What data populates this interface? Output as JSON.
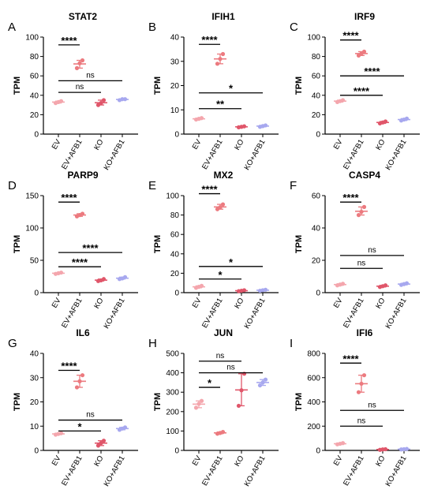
{
  "colors": {
    "EV": "#f4a6ad",
    "EV+AFB1": "#ec7a7f",
    "KO": "#e0566a",
    "KO+AFB1": "#a7a8ef"
  },
  "chart_data": [
    {
      "type": "scatter",
      "letter": "A",
      "title": "STAT2",
      "ylabel": "TPM",
      "categories": [
        "EV",
        "EV+AFB1",
        "KO",
        "KO+AFB1"
      ],
      "ylim": [
        0,
        100
      ],
      "yticks": [
        0,
        20,
        40,
        60,
        80,
        100
      ],
      "series": [
        {
          "category": "EV",
          "values": [
            32,
            33,
            34
          ]
        },
        {
          "category": "EV+AFB1",
          "values": [
            68,
            73,
            76
          ]
        },
        {
          "category": "KO",
          "values": [
            30,
            32,
            35
          ]
        },
        {
          "category": "KO+AFB1",
          "values": [
            35,
            36,
            36
          ]
        }
      ],
      "comparisons": [
        {
          "from": "EV",
          "to": "EV+AFB1",
          "label": "****",
          "y": 92
        },
        {
          "from": "EV",
          "to": "KO+AFB1",
          "label": "ns",
          "y": 55
        },
        {
          "from": "EV",
          "to": "KO",
          "label": "ns",
          "y": 43
        }
      ]
    },
    {
      "type": "scatter",
      "letter": "B",
      "title": "IFIH1",
      "ylabel": "TPM",
      "categories": [
        "EV",
        "EV+AFB1",
        "KO",
        "KO+AFB1"
      ],
      "ylim": [
        0,
        40
      ],
      "yticks": [
        0,
        10,
        20,
        30,
        40
      ],
      "series": [
        {
          "category": "EV",
          "values": [
            6,
            6.3,
            6.6
          ]
        },
        {
          "category": "EV+AFB1",
          "values": [
            29,
            31,
            33
          ]
        },
        {
          "category": "KO",
          "values": [
            2.8,
            3,
            3.2
          ]
        },
        {
          "category": "KO+AFB1",
          "values": [
            3,
            3.3,
            3.6
          ]
        }
      ],
      "comparisons": [
        {
          "from": "EV",
          "to": "EV+AFB1",
          "label": "****",
          "y": 37
        },
        {
          "from": "EV",
          "to": "KO+AFB1",
          "label": "*",
          "y": 17
        },
        {
          "from": "EV",
          "to": "KO",
          "label": "**",
          "y": 10.5
        }
      ]
    },
    {
      "type": "scatter",
      "letter": "C",
      "title": "IRF9",
      "ylabel": "TPM",
      "categories": [
        "EV",
        "EV+AFB1",
        "KO",
        "KO+AFB1"
      ],
      "ylim": [
        0,
        100
      ],
      "yticks": [
        0,
        20,
        40,
        60,
        80,
        100
      ],
      "series": [
        {
          "category": "EV",
          "values": [
            33,
            34,
            35
          ]
        },
        {
          "category": "EV+AFB1",
          "values": [
            81,
            83,
            85
          ]
        },
        {
          "category": "KO",
          "values": [
            11,
            12,
            13
          ]
        },
        {
          "category": "KO+AFB1",
          "values": [
            14,
            15,
            16
          ]
        }
      ],
      "comparisons": [
        {
          "from": "EV",
          "to": "EV+AFB1",
          "label": "****",
          "y": 97
        },
        {
          "from": "EV",
          "to": "KO+AFB1",
          "label": "****",
          "y": 60
        },
        {
          "from": "EV",
          "to": "KO",
          "label": "****",
          "y": 40
        }
      ]
    },
    {
      "type": "scatter",
      "letter": "D",
      "title": "PARP9",
      "ylabel": "TPM",
      "categories": [
        "EV",
        "EV+AFB1",
        "KO",
        "KO+AFB1"
      ],
      "ylim": [
        0,
        150
      ],
      "yticks": [
        0,
        50,
        100,
        150
      ],
      "series": [
        {
          "category": "EV",
          "values": [
            29,
            30,
            31
          ]
        },
        {
          "category": "EV+AFB1",
          "values": [
            118,
            120,
            122
          ]
        },
        {
          "category": "KO",
          "values": [
            18,
            19,
            21
          ]
        },
        {
          "category": "KO+AFB1",
          "values": [
            21,
            22,
            24
          ]
        }
      ],
      "comparisons": [
        {
          "from": "EV",
          "to": "EV+AFB1",
          "label": "****",
          "y": 140
        },
        {
          "from": "EV",
          "to": "KO+AFB1",
          "label": "****",
          "y": 62
        },
        {
          "from": "EV",
          "to": "KO",
          "label": "****",
          "y": 40
        }
      ]
    },
    {
      "type": "scatter",
      "letter": "E",
      "title": "MX2",
      "ylabel": "TPM",
      "categories": [
        "EV",
        "EV+AFB1",
        "KO",
        "KO+AFB1"
      ],
      "ylim": [
        0,
        100
      ],
      "yticks": [
        0,
        20,
        40,
        60,
        80,
        100
      ],
      "series": [
        {
          "category": "EV",
          "values": [
            5,
            6,
            7
          ]
        },
        {
          "category": "EV+AFB1",
          "values": [
            86,
            88,
            91
          ]
        },
        {
          "category": "KO",
          "values": [
            1.5,
            2,
            2.5
          ]
        },
        {
          "category": "KO+AFB1",
          "values": [
            2,
            2.5,
            3
          ]
        }
      ],
      "comparisons": [
        {
          "from": "EV",
          "to": "EV+AFB1",
          "label": "****",
          "y": 102
        },
        {
          "from": "EV",
          "to": "KO+AFB1",
          "label": "*",
          "y": 27
        },
        {
          "from": "EV",
          "to": "KO",
          "label": "*",
          "y": 14
        }
      ]
    },
    {
      "type": "scatter",
      "letter": "F",
      "title": "CASP4",
      "ylabel": "TPM",
      "categories": [
        "EV",
        "EV+AFB1",
        "KO",
        "KO+AFB1"
      ],
      "ylim": [
        0,
        60
      ],
      "yticks": [
        0,
        20,
        40,
        60
      ],
      "series": [
        {
          "category": "EV",
          "values": [
            4.5,
            5,
            5.5
          ]
        },
        {
          "category": "EV+AFB1",
          "values": [
            48,
            50,
            53
          ]
        },
        {
          "category": "KO",
          "values": [
            3.5,
            4,
            4.5
          ]
        },
        {
          "category": "KO+AFB1",
          "values": [
            4.8,
            5.3,
            5.8
          ]
        }
      ],
      "comparisons": [
        {
          "from": "EV",
          "to": "EV+AFB1",
          "label": "****",
          "y": 56
        },
        {
          "from": "EV",
          "to": "KO+AFB1",
          "label": "ns",
          "y": 23
        },
        {
          "from": "EV",
          "to": "KO",
          "label": "ns",
          "y": 15
        }
      ]
    },
    {
      "type": "scatter",
      "letter": "G",
      "title": "IL6",
      "ylabel": "TPM",
      "categories": [
        "EV",
        "EV+AFB1",
        "KO",
        "KO+AFB1"
      ],
      "ylim": [
        0,
        40
      ],
      "yticks": [
        0,
        10,
        20,
        30,
        40
      ],
      "series": [
        {
          "category": "EV",
          "values": [
            6.5,
            6.8,
            7.1
          ]
        },
        {
          "category": "EV+AFB1",
          "values": [
            26,
            28.5,
            31
          ]
        },
        {
          "category": "KO",
          "values": [
            2,
            3,
            4
          ]
        },
        {
          "category": "KO+AFB1",
          "values": [
            8.5,
            9,
            9.5
          ]
        }
      ],
      "comparisons": [
        {
          "from": "EV",
          "to": "EV+AFB1",
          "label": "****",
          "y": 33
        },
        {
          "from": "EV",
          "to": "KO+AFB1",
          "label": "ns",
          "y": 12.5
        },
        {
          "from": "EV",
          "to": "KO",
          "label": "*",
          "y": 8
        }
      ]
    },
    {
      "type": "scatter",
      "letter": "H",
      "title": "JUN",
      "ylabel": "TPM",
      "categories": [
        "EV",
        "EV+AFB1",
        "KO",
        "KO+AFB1"
      ],
      "ylim": [
        0,
        500
      ],
      "yticks": [
        0,
        100,
        200,
        300,
        400,
        500
      ],
      "series": [
        {
          "category": "EV",
          "values": [
            220,
            240,
            255
          ]
        },
        {
          "category": "EV+AFB1",
          "values": [
            86,
            90,
            95
          ]
        },
        {
          "category": "KO",
          "values": [
            230,
            310,
            395
          ]
        },
        {
          "category": "KO+AFB1",
          "values": [
            335,
            350,
            365
          ]
        }
      ],
      "comparisons": [
        {
          "from": "EV",
          "to": "KO",
          "label": "ns",
          "y": 460
        },
        {
          "from": "EV",
          "to": "KO+AFB1",
          "label": "ns",
          "y": 400
        },
        {
          "from": "EV",
          "to": "EV+AFB1",
          "label": "*",
          "y": 325
        }
      ]
    },
    {
      "type": "scatter",
      "letter": "I",
      "title": "IFI6",
      "ylabel": "TPM",
      "categories": [
        "EV",
        "EV+AFB1",
        "KO",
        "KO+AFB1"
      ],
      "ylim": [
        0,
        800
      ],
      "yticks": [
        0,
        200,
        400,
        600,
        800
      ],
      "series": [
        {
          "category": "EV",
          "values": [
            50,
            55,
            60
          ]
        },
        {
          "category": "EV+AFB1",
          "values": [
            480,
            550,
            620
          ]
        },
        {
          "category": "KO",
          "values": [
            5,
            8,
            10
          ]
        },
        {
          "category": "KO+AFB1",
          "values": [
            8,
            10,
            12
          ]
        }
      ],
      "comparisons": [
        {
          "from": "EV",
          "to": "EV+AFB1",
          "label": "****",
          "y": 720
        },
        {
          "from": "EV",
          "to": "KO+AFB1",
          "label": "ns",
          "y": 330
        },
        {
          "from": "EV",
          "to": "KO",
          "label": "ns",
          "y": 200
        }
      ]
    }
  ]
}
